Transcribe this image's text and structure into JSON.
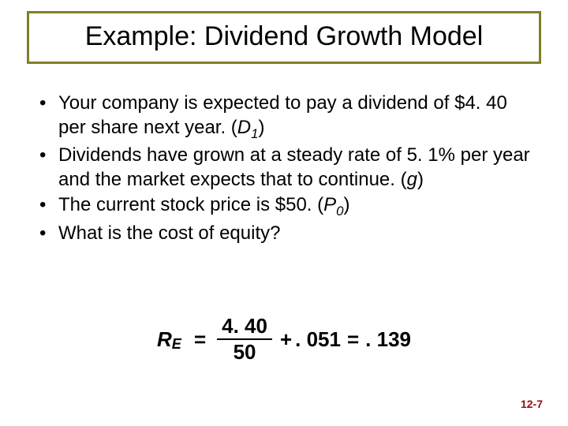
{
  "title": "Example: Dividend Growth Model",
  "title_border_color": "#7f7f2a",
  "bullets": {
    "b1_a": "Your company is expected to pay a dividend of $4. 40 per share next year. (",
    "b1_var": "D",
    "b1_sub": "1",
    "b1_c": ")",
    "b2_a": "Dividends have grown at a steady rate of 5. 1% per year and the market expects that to continue. (",
    "b2_var": "g",
    "b2_c": ")",
    "b3_a": "The current stock price is $50. (",
    "b3_var": "P",
    "b3_sub": "0",
    "b3_c": ")",
    "b4": "What is the cost of equity?"
  },
  "equation": {
    "lhs_sym": "R",
    "lhs_sub": "E",
    "eq1": "=",
    "num": "4. 40",
    "den": "50",
    "plus": "+",
    "g": ". 051",
    "eq2": "=",
    "result": ". 139"
  },
  "page_number": "12-7",
  "page_number_color": "#9b0a0e"
}
